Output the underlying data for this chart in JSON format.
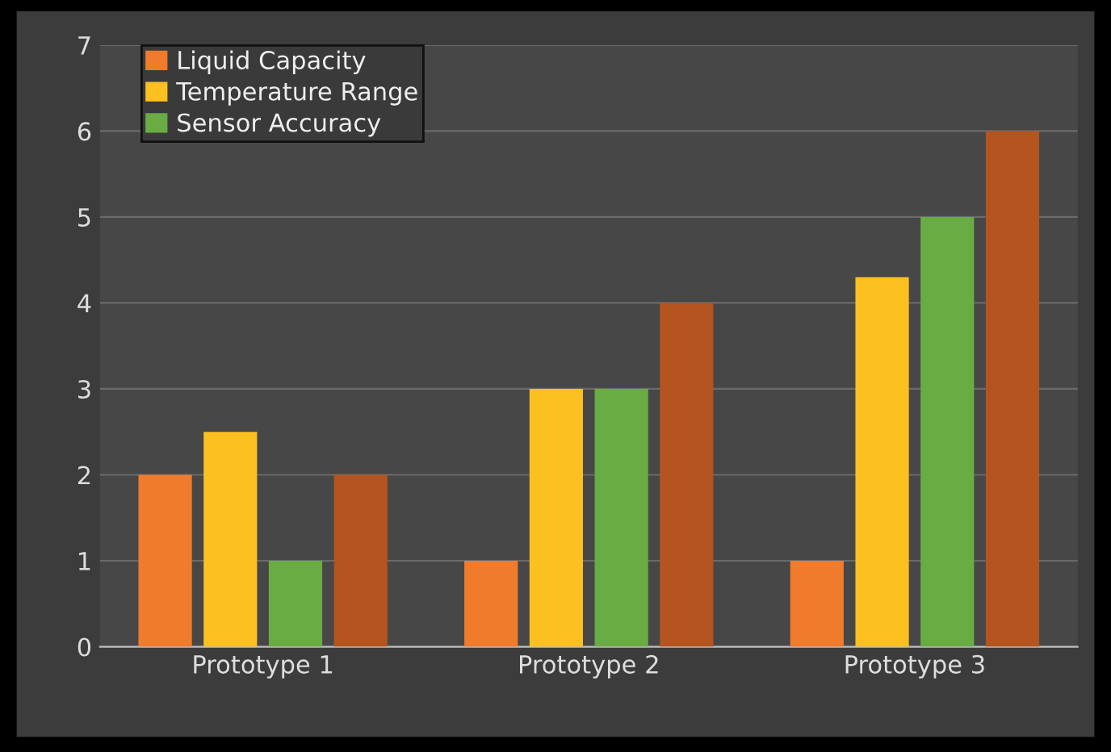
{
  "chart_data": {
    "type": "bar",
    "categories": [
      "Prototype 1",
      "Prototype 2",
      "Prototype 3"
    ],
    "series": [
      {
        "name": "Liquid Capacity",
        "color": "#f07b2c",
        "values": [
          2,
          1,
          1
        ]
      },
      {
        "name": "Temperature Range",
        "color": "#fcc020",
        "values": [
          2.5,
          3,
          4.3
        ]
      },
      {
        "name": "Sensor Accuracy",
        "color": "#6aac44",
        "values": [
          1,
          3,
          5
        ]
      },
      {
        "color": "#b4541e",
        "values": [
          2,
          4,
          6
        ]
      }
    ],
    "ylim": [
      0,
      7
    ],
    "yticks": [
      0,
      1,
      2,
      3,
      4,
      5,
      6,
      7
    ],
    "grid": "y",
    "legend": "top left"
  }
}
